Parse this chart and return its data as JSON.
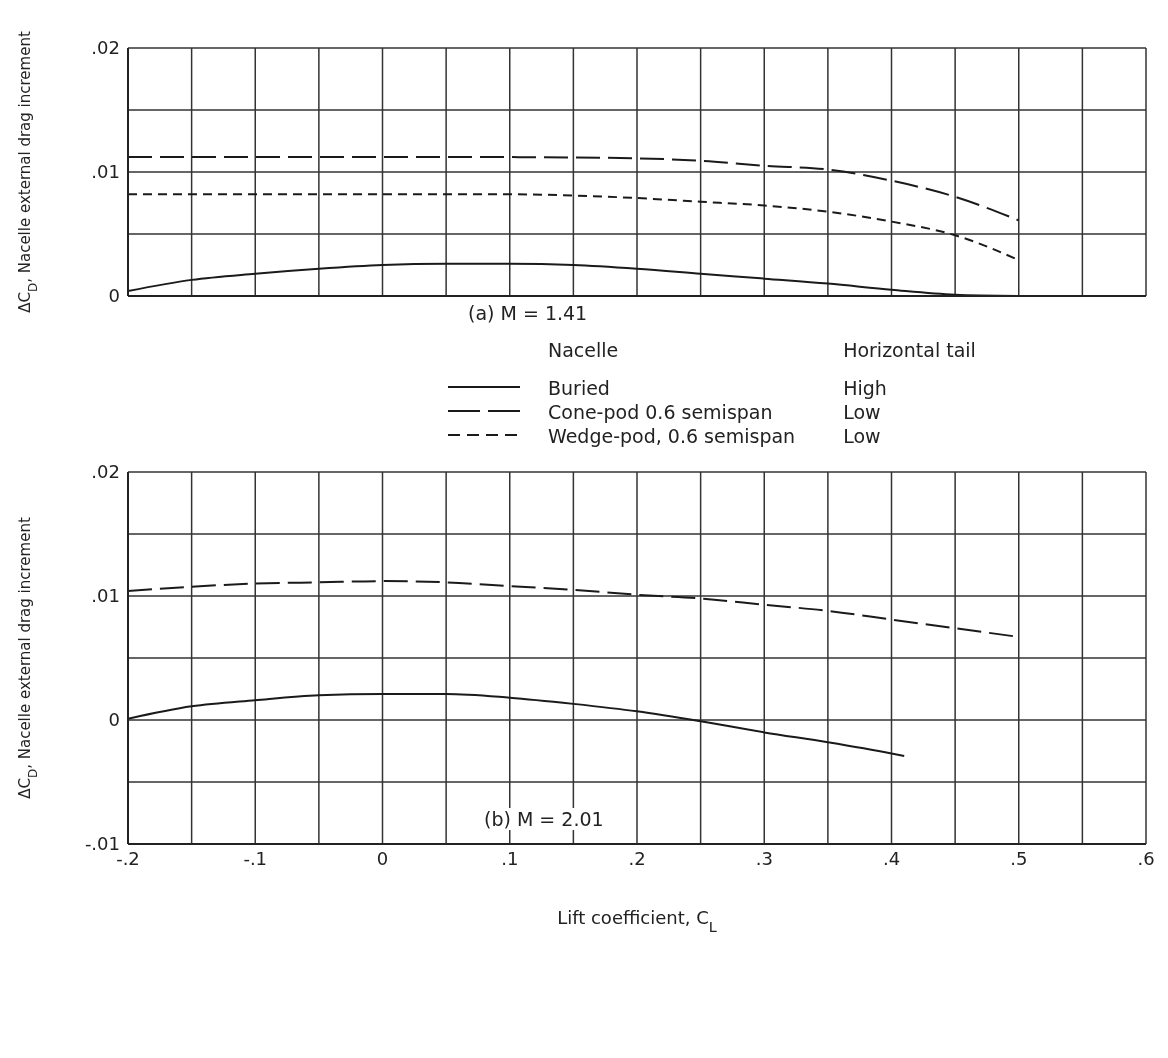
{
  "chart_data": [
    {
      "type": "line",
      "title": "(a) M = 1.41",
      "ylabel": "ΔC$_{D}$, Nacelle external drag increment",
      "legend_title": "Nacelle",
      "legend": "bottom",
      "grid": true,
      "tick_labels": "y",
      "marker": "none",
      "annotations": [
        "Horizontal tail",
        "High",
        "Low",
        "Low"
      ],
      "xlim": [
        -0.2,
        0.6
      ],
      "xticks": [
        {
          "value": -0.2,
          "label": null
        },
        {
          "value": -0.15,
          "label": null
        },
        {
          "value": -0.1,
          "label": null
        },
        {
          "value": -0.05,
          "label": null
        },
        {
          "value": 0,
          "label": null
        },
        {
          "value": 0.05,
          "label": null
        },
        {
          "value": 0.1,
          "label": null
        },
        {
          "value": 0.15,
          "label": null
        },
        {
          "value": 0.2,
          "label": null
        },
        {
          "value": 0.25,
          "label": null
        },
        {
          "value": 0.3,
          "label": null
        },
        {
          "value": 0.35,
          "label": null
        },
        {
          "value": 0.4,
          "label": null
        },
        {
          "value": 0.45,
          "label": null
        },
        {
          "value": 0.5,
          "label": null
        },
        {
          "value": 0.55,
          "label": null
        },
        {
          "value": 0.6,
          "label": null
        }
      ],
      "ylim": [
        0,
        0.02
      ],
      "yticks": [
        0,
        {
          "value": 0.005,
          "label": null
        },
        {
          "value": 0.01,
          "label": ".01"
        },
        {
          "value": 0.015,
          "label": null
        },
        {
          "value": 0.02,
          "label": ".02"
        }
      ],
      "series": [
        {
          "name": "Buried",
          "color": "#1a1a1a",
          "line_style": "solid",
          "x": [
            -0.2,
            -0.15,
            -0.1,
            -0.05,
            0,
            0.05,
            0.1,
            0.15,
            0.2,
            0.25,
            0.3,
            0.35,
            0.4,
            0.45,
            0.5
          ],
          "values": [
            0.0004,
            0.0013,
            0.0018,
            0.0022,
            0.0025,
            0.0026,
            0.0026,
            0.0025,
            0.0022,
            0.0018,
            0.0014,
            0.001,
            0.0005,
            0.0001,
            0
          ]
        },
        {
          "name": "Cone-pod 0.6 semispan",
          "color": "#1a1a1a",
          "line_style": "dashed",
          "x": [
            -0.2,
            -0.1,
            0,
            0.1,
            0.2,
            0.25,
            0.3,
            0.35,
            0.4,
            0.45,
            0.5
          ],
          "values": [
            0.0112,
            0.0112,
            0.0112,
            0.0112,
            0.0111,
            0.0109,
            0.0105,
            0.0102,
            0.0093,
            0.008,
            0.0061
          ]
        },
        {
          "name": "Wedge-pod, 0.6 semispan",
          "color": "#1a1a1a",
          "line_style": "dotted",
          "x": [
            -0.2,
            -0.1,
            0,
            0.1,
            0.15,
            0.2,
            0.25,
            0.3,
            0.35,
            0.4,
            0.45,
            0.5
          ],
          "values": [
            0.0082,
            0.0082,
            0.0082,
            0.0082,
            0.0081,
            0.0079,
            0.0076,
            0.0073,
            0.0068,
            0.006,
            0.0049,
            0.0029
          ]
        }
      ]
    },
    {
      "type": "line",
      "title": "(b) M = 2.01",
      "ylabel": "ΔC$_{D}$, Nacelle external drag increment",
      "xlabel": "Lift coefficient, C$_{L}$",
      "grid": true,
      "marker": "none",
      "xlim": [
        -0.2,
        0.6
      ],
      "xticks": [
        {
          "value": -0.2,
          "label": "-.2"
        },
        {
          "value": -0.15,
          "label": null
        },
        {
          "value": -0.1,
          "label": "-.1"
        },
        {
          "value": -0.05,
          "label": null
        },
        {
          "value": 0,
          "label": "0"
        },
        {
          "value": 0.05,
          "label": null
        },
        {
          "value": 0.1,
          "label": ".1"
        },
        {
          "value": 0.15,
          "label": null
        },
        {
          "value": 0.2,
          "label": ".2"
        },
        {
          "value": 0.25,
          "label": null
        },
        {
          "value": 0.3,
          "label": ".3"
        },
        {
          "value": 0.35,
          "label": null
        },
        {
          "value": 0.4,
          "label": ".4"
        },
        {
          "value": 0.45,
          "label": null
        },
        {
          "value": 0.5,
          "label": ".5"
        },
        {
          "value": 0.55,
          "label": null
        },
        {
          "value": 0.6,
          "label": ".6"
        }
      ],
      "ylim": [
        -0.01,
        0.02
      ],
      "yticks": [
        {
          "value": -0.01,
          "label": "-.01"
        },
        {
          "value": -0.005,
          "label": null
        },
        0,
        {
          "value": 0.005,
          "label": null
        },
        {
          "value": 0.01,
          "label": ".01"
        },
        {
          "value": 0.015,
          "label": null
        },
        {
          "value": 0.02,
          "label": ".02"
        }
      ],
      "series": [
        {
          "color": "#1a1a1a",
          "line_style": "solid",
          "x": [
            -0.2,
            -0.15,
            -0.1,
            -0.05,
            0,
            0.05,
            0.1,
            0.15,
            0.2,
            0.25,
            0.3,
            0.35,
            0.4,
            0.41
          ],
          "values": [
            0.0001,
            0.0011,
            0.0016,
            0.002,
            0.0021,
            0.0021,
            0.0018,
            0.0013,
            0.0007,
            -0.0001,
            -0.001,
            -0.0018,
            -0.0027,
            -0.0029
          ]
        },
        {
          "color": "#1a1a1a",
          "line_style": "dashed",
          "x": [
            -0.2,
            -0.1,
            -0.05,
            0,
            0.05,
            0.1,
            0.15,
            0.2,
            0.25,
            0.3,
            0.35,
            0.4,
            0.45,
            0.5
          ],
          "values": [
            0.0104,
            0.011,
            0.0111,
            0.0112,
            0.0111,
            0.0108,
            0.0105,
            0.0101,
            0.0098,
            0.0093,
            0.0088,
            0.0081,
            0.0074,
            0.0067
          ]
        }
      ]
    }
  ]
}
